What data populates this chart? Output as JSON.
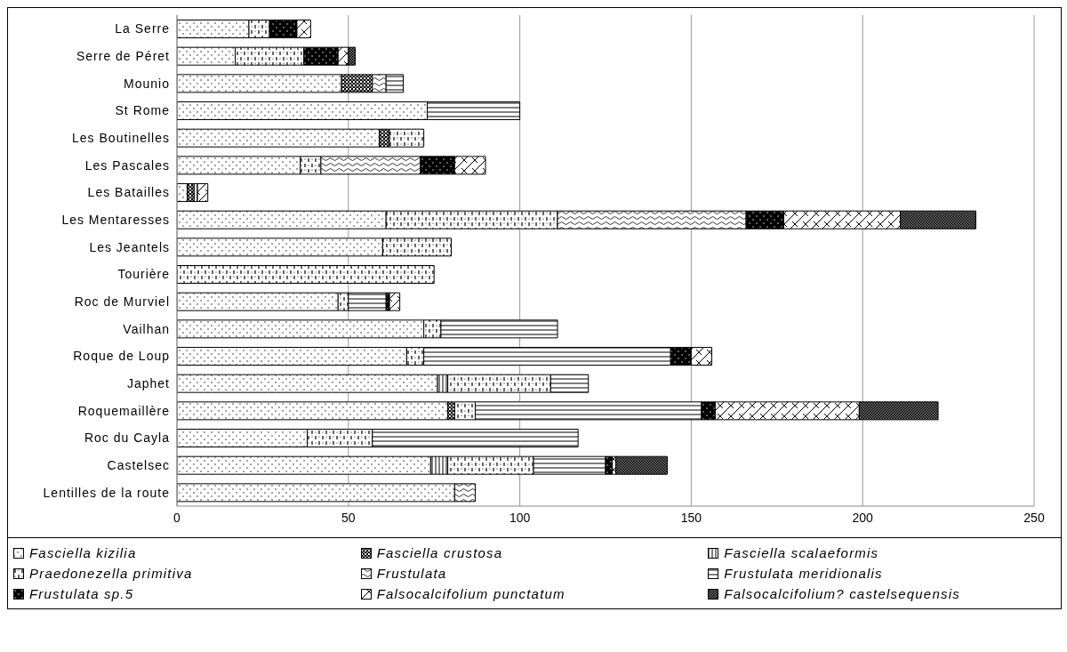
{
  "chart_data": {
    "type": "bar",
    "orientation": "horizontal",
    "stacked": true,
    "categories": [
      "La Serre",
      "Serre de Péret",
      "Mounio",
      "St Rome",
      "Les Boutinelles",
      "Les Pascales",
      "Les Batailles",
      "Les Mentaresses",
      "Les Jeantels",
      "Tourière",
      "Roc de Murviel",
      "Vailhan",
      "Roque de Loup",
      "Japhet",
      "Roquemaillère",
      "Roc du Cayla",
      "Castelsec",
      "Lentilles de la route"
    ],
    "series": [
      {
        "name": "Fasciella kizilia",
        "color": "#000000",
        "values": [
          21,
          17,
          48,
          73,
          59,
          36,
          3,
          61,
          60,
          null,
          47,
          72,
          67,
          76,
          79,
          38,
          74,
          81
        ]
      },
      {
        "name": "Fasciella crustosa",
        "color": "#000000",
        "values": [
          null,
          null,
          9,
          null,
          3,
          null,
          2,
          null,
          null,
          null,
          null,
          null,
          null,
          null,
          2,
          null,
          null,
          null
        ]
      },
      {
        "name": "Fasciella scalaeformis",
        "color": "#000000",
        "values": [
          null,
          null,
          null,
          null,
          null,
          null,
          1,
          null,
          null,
          null,
          null,
          null,
          null,
          3,
          null,
          null,
          5,
          null
        ]
      },
      {
        "name": "Praedonezella primitiva",
        "color": "#000000",
        "values": [
          6,
          20,
          null,
          null,
          10,
          6,
          null,
          50,
          20,
          75,
          3,
          5,
          5,
          30,
          6,
          19,
          25,
          null
        ]
      },
      {
        "name": "Frustulata",
        "color": "#000000",
        "values": [
          null,
          null,
          4,
          null,
          null,
          29,
          null,
          55,
          null,
          null,
          null,
          null,
          null,
          null,
          null,
          null,
          null,
          6
        ]
      },
      {
        "name": "Frustulata meridionalis",
        "color": "#000000",
        "values": [
          null,
          null,
          5,
          27,
          null,
          null,
          null,
          null,
          null,
          null,
          11,
          34,
          72,
          11,
          66,
          60,
          21,
          null
        ]
      },
      {
        "name": "Frustulata sp.5",
        "color": "#000000",
        "values": [
          8,
          10,
          null,
          null,
          null,
          10,
          null,
          11,
          null,
          null,
          1,
          null,
          6,
          null,
          4,
          null,
          2,
          null
        ]
      },
      {
        "name": "Falsocalcifolium punctatum",
        "color": "#000000",
        "values": [
          4,
          3,
          null,
          null,
          null,
          9,
          3,
          34,
          null,
          null,
          3,
          null,
          6,
          null,
          42,
          null,
          1,
          null
        ]
      },
      {
        "name": "Falsocalcifolium? castelsequensis",
        "color": "#000000",
        "values": [
          null,
          2,
          null,
          null,
          null,
          null,
          null,
          22,
          null,
          null,
          null,
          null,
          null,
          null,
          23,
          null,
          15,
          null
        ]
      }
    ],
    "xlim": [
      0,
      250
    ],
    "xticks": [
      0,
      50,
      100,
      150,
      200,
      250
    ],
    "grid": "x",
    "legend": "bottom"
  }
}
